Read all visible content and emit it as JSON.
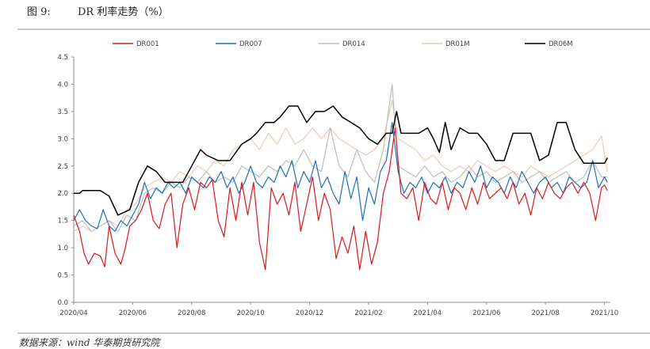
{
  "figure": {
    "number": "图 9:",
    "title": "DR 利率走势（%）",
    "source": "数据来源：wind 华泰期货研究院"
  },
  "chart_data": {
    "type": "line",
    "title": "DR 利率走势（%）",
    "xlabel": "",
    "ylabel": "",
    "ylim": [
      0,
      4.5
    ],
    "yticks": [
      "0.0",
      "0.5",
      "1.0",
      "1.5",
      "2.0",
      "2.5",
      "3.0",
      "3.5",
      "4.0",
      "4.5"
    ],
    "xlim": [
      0,
      18.2
    ],
    "xticks": [
      "2020/04",
      "2020/06",
      "2020/08",
      "2020/10",
      "2020/12",
      "2021/02",
      "2021/04",
      "2021/06",
      "2021/08",
      "2021/10"
    ],
    "legend_position": "top",
    "grid": false,
    "series": [
      {
        "name": "DR001",
        "color": "#d7191c",
        "x": [
          0,
          0.2,
          0.35,
          0.5,
          0.7,
          0.9,
          1.05,
          1.2,
          1.4,
          1.6,
          1.75,
          1.9,
          2.1,
          2.3,
          2.5,
          2.7,
          2.9,
          3.1,
          3.3,
          3.5,
          3.7,
          3.9,
          4.1,
          4.3,
          4.5,
          4.7,
          4.9,
          5.1,
          5.3,
          5.5,
          5.7,
          5.9,
          6.1,
          6.3,
          6.5,
          6.7,
          6.9,
          7.1,
          7.3,
          7.5,
          7.7,
          7.9,
          8.1,
          8.3,
          8.5,
          8.7,
          8.9,
          9.1,
          9.3,
          9.5,
          9.7,
          9.9,
          10.1,
          10.3,
          10.5,
          10.7,
          10.9,
          11.1,
          11.3,
          11.5,
          11.7,
          11.9,
          12.1,
          12.3,
          12.5,
          12.7,
          12.9,
          13.1,
          13.3,
          13.5,
          13.7,
          13.9,
          14.1,
          14.3,
          14.5,
          14.7,
          14.9,
          15.1,
          15.3,
          15.5,
          15.7,
          15.9,
          16.1,
          16.3,
          16.5,
          16.7,
          16.9,
          17.1,
          17.3,
          17.5,
          17.7,
          17.9,
          18.0,
          18.1
        ],
        "values": [
          1.6,
          1.3,
          0.9,
          0.7,
          0.9,
          0.85,
          0.65,
          1.4,
          0.9,
          0.7,
          1.0,
          1.4,
          1.5,
          1.7,
          2.0,
          1.5,
          1.35,
          1.8,
          2.0,
          1.0,
          1.8,
          2.1,
          1.7,
          2.2,
          2.1,
          2.25,
          1.5,
          1.2,
          2.1,
          1.5,
          2.2,
          1.6,
          2.2,
          1.1,
          0.6,
          2.1,
          1.8,
          2.0,
          1.6,
          2.2,
          1.3,
          1.8,
          2.3,
          1.5,
          2.0,
          1.7,
          0.8,
          1.2,
          0.9,
          1.4,
          0.6,
          1.3,
          0.7,
          1.1,
          2.0,
          2.4,
          3.2,
          2.0,
          1.9,
          2.1,
          1.5,
          2.2,
          1.9,
          1.8,
          2.2,
          1.7,
          2.1,
          2.0,
          1.7,
          2.1,
          1.8,
          2.2,
          1.9,
          2.0,
          2.1,
          1.9,
          2.2,
          1.8,
          2.0,
          1.6,
          2.1,
          1.9,
          2.2,
          2.0,
          1.9,
          2.1,
          2.2,
          2.0,
          2.2,
          2.0,
          1.5,
          2.1,
          2.15,
          2.05
        ]
      },
      {
        "name": "DR007",
        "color": "#1f6fb8",
        "x": [
          0,
          0.2,
          0.4,
          0.6,
          0.8,
          1.0,
          1.2,
          1.4,
          1.6,
          1.8,
          2.0,
          2.2,
          2.4,
          2.6,
          2.8,
          3.0,
          3.2,
          3.4,
          3.6,
          3.8,
          4.0,
          4.2,
          4.4,
          4.6,
          4.8,
          5.0,
          5.2,
          5.4,
          5.6,
          5.8,
          6.0,
          6.2,
          6.4,
          6.6,
          6.8,
          7.0,
          7.2,
          7.4,
          7.6,
          7.8,
          8.0,
          8.2,
          8.4,
          8.6,
          8.8,
          9.0,
          9.2,
          9.4,
          9.6,
          9.8,
          10.0,
          10.2,
          10.4,
          10.6,
          10.8,
          11.0,
          11.2,
          11.4,
          11.6,
          11.8,
          12.0,
          12.2,
          12.4,
          12.6,
          12.8,
          13.0,
          13.2,
          13.4,
          13.6,
          13.8,
          14.0,
          14.2,
          14.4,
          14.6,
          14.8,
          15.0,
          15.2,
          15.4,
          15.6,
          15.8,
          16.0,
          16.2,
          16.4,
          16.6,
          16.8,
          17.0,
          17.2,
          17.4,
          17.6,
          17.8,
          18.0,
          18.1
        ],
        "values": [
          1.5,
          1.7,
          1.5,
          1.4,
          1.35,
          1.7,
          1.4,
          1.3,
          1.5,
          1.4,
          1.6,
          1.8,
          2.2,
          1.9,
          2.1,
          2.0,
          2.2,
          2.1,
          2.2,
          2.0,
          2.3,
          2.2,
          2.1,
          2.3,
          2.2,
          2.4,
          2.1,
          2.3,
          2.0,
          2.2,
          2.5,
          2.2,
          2.1,
          2.3,
          2.2,
          2.5,
          2.3,
          2.6,
          2.1,
          2.4,
          2.2,
          2.6,
          2.1,
          2.3,
          2.0,
          1.8,
          2.4,
          1.9,
          2.3,
          1.5,
          2.1,
          1.8,
          2.4,
          2.6,
          3.3,
          2.4,
          2.0,
          2.2,
          2.1,
          2.3,
          2.0,
          2.2,
          2.1,
          2.3,
          2.0,
          2.2,
          2.1,
          2.4,
          2.2,
          2.5,
          2.1,
          2.3,
          2.2,
          2.0,
          2.3,
          2.1,
          2.4,
          2.2,
          2.0,
          2.2,
          2.3,
          2.1,
          2.2,
          2.0,
          2.3,
          2.2,
          2.1,
          2.2,
          2.6,
          2.1,
          2.3,
          2.2
        ]
      },
      {
        "name": "DR014",
        "color": "#bdbdbd",
        "x": [
          0,
          0.3,
          0.6,
          0.9,
          1.2,
          1.5,
          1.8,
          2.1,
          2.4,
          2.7,
          3.0,
          3.3,
          3.6,
          3.9,
          4.2,
          4.5,
          4.8,
          5.1,
          5.4,
          5.7,
          6.0,
          6.3,
          6.6,
          6.9,
          7.2,
          7.5,
          7.8,
          8.1,
          8.4,
          8.7,
          9.0,
          9.3,
          9.6,
          9.9,
          10.2,
          10.5,
          10.8,
          11.0,
          11.3,
          11.6,
          11.9,
          12.2,
          12.5,
          12.8,
          13.1,
          13.4,
          13.7,
          14.0,
          14.3,
          14.6,
          14.9,
          15.2,
          15.5,
          15.8,
          16.1,
          16.4,
          16.7,
          17.0,
          17.3,
          17.6,
          17.9,
          18.1
        ],
        "values": [
          1.4,
          1.5,
          1.3,
          1.4,
          1.5,
          1.3,
          1.6,
          1.5,
          2.0,
          2.1,
          2.0,
          2.2,
          2.1,
          2.3,
          2.2,
          2.4,
          2.2,
          2.3,
          2.2,
          2.5,
          2.4,
          2.3,
          2.5,
          2.4,
          2.6,
          2.5,
          2.8,
          2.5,
          2.4,
          3.2,
          2.5,
          2.3,
          2.8,
          2.4,
          2.2,
          2.8,
          4.0,
          2.5,
          2.4,
          2.3,
          2.5,
          2.3,
          2.4,
          2.2,
          2.3,
          2.5,
          2.3,
          2.4,
          2.2,
          2.3,
          2.4,
          2.2,
          2.3,
          2.4,
          2.2,
          2.3,
          2.4,
          2.2,
          2.3,
          2.6,
          2.3,
          2.3
        ]
      },
      {
        "name": "DR01M",
        "color": "#f4c6b4",
        "x": [
          0,
          0.3,
          0.6,
          0.9,
          1.2,
          1.5,
          1.8,
          2.1,
          2.4,
          2.7,
          3.0,
          3.3,
          3.6,
          3.9,
          4.2,
          4.5,
          4.8,
          5.1,
          5.4,
          5.7,
          6.0,
          6.3,
          6.6,
          6.9,
          7.2,
          7.5,
          7.8,
          8.1,
          8.4,
          8.7,
          9.0,
          9.3,
          9.6,
          9.9,
          10.2,
          10.5,
          10.8,
          11.0,
          11.3,
          11.6,
          11.9,
          12.2,
          12.5,
          12.8,
          13.1,
          13.4,
          13.7,
          14.0,
          14.3,
          14.6,
          14.9,
          15.2,
          15.5,
          15.8,
          16.1,
          16.4,
          16.7,
          17.0,
          17.3,
          17.6,
          17.9,
          18.1
        ],
        "values": [
          1.3,
          1.4,
          1.3,
          1.4,
          1.5,
          1.4,
          1.7,
          1.8,
          2.1,
          2.2,
          2.3,
          2.2,
          2.4,
          2.3,
          2.5,
          2.4,
          2.6,
          2.5,
          2.8,
          2.9,
          3.0,
          2.8,
          3.1,
          2.9,
          3.2,
          2.9,
          3.0,
          3.2,
          3.0,
          3.2,
          3.0,
          2.9,
          2.8,
          2.7,
          2.8,
          3.0,
          3.7,
          3.0,
          2.9,
          2.8,
          2.6,
          2.7,
          2.5,
          2.4,
          2.5,
          2.4,
          2.6,
          2.5,
          2.4,
          2.5,
          2.4,
          2.3,
          2.5,
          2.4,
          2.3,
          2.4,
          2.5,
          2.6,
          2.7,
          2.8,
          3.05,
          2.4
        ]
      },
      {
        "name": "DR06M",
        "color": "#000000",
        "x": [
          0,
          0.2,
          0.3,
          0.6,
          0.9,
          1.2,
          1.5,
          1.9,
          2.2,
          2.5,
          2.8,
          3.1,
          3.4,
          3.7,
          4.0,
          4.3,
          4.5,
          4.9,
          5.3,
          5.7,
          6.0,
          6.2,
          6.5,
          6.8,
          7.0,
          7.3,
          7.6,
          7.9,
          8.2,
          8.5,
          8.8,
          9.1,
          9.4,
          9.7,
          10.0,
          10.3,
          10.6,
          10.8,
          10.95,
          11.1,
          11.4,
          11.7,
          12.0,
          12.2,
          12.4,
          12.6,
          12.8,
          13.1,
          13.4,
          13.7,
          14.0,
          14.3,
          14.6,
          14.9,
          15.2,
          15.5,
          15.8,
          16.1,
          16.4,
          16.7,
          17.0,
          17.3,
          17.6,
          17.9,
          18.0,
          18.1
        ],
        "values": [
          2.0,
          2.0,
          2.05,
          2.05,
          2.05,
          1.95,
          1.6,
          1.7,
          2.2,
          2.5,
          2.4,
          2.2,
          2.2,
          2.2,
          2.5,
          2.8,
          2.7,
          2.6,
          2.6,
          2.9,
          3.0,
          3.1,
          3.3,
          3.3,
          3.4,
          3.6,
          3.6,
          3.3,
          3.5,
          3.5,
          3.6,
          3.4,
          3.3,
          3.2,
          3.0,
          2.9,
          3.1,
          3.1,
          3.5,
          3.1,
          3.1,
          3.1,
          3.2,
          3.0,
          2.75,
          3.3,
          2.8,
          3.2,
          3.1,
          3.1,
          2.9,
          2.6,
          2.6,
          3.1,
          3.1,
          3.1,
          2.6,
          2.7,
          3.3,
          3.3,
          2.8,
          2.55,
          2.55,
          2.55,
          2.55,
          2.65
        ]
      }
    ]
  }
}
